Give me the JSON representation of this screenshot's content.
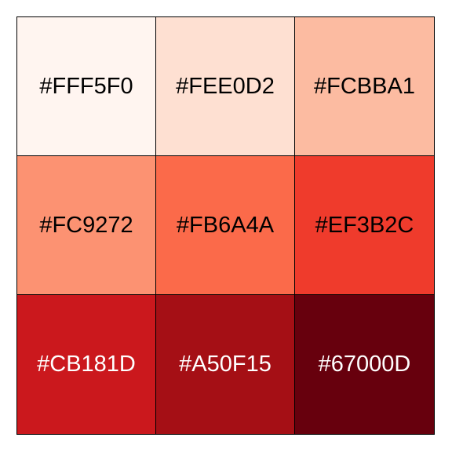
{
  "swatches": [
    {
      "label": "#FFF5F0",
      "color": "#FFF5F0",
      "text_color": "#000000"
    },
    {
      "label": "#FEE0D2",
      "color": "#FEE0D2",
      "text_color": "#000000"
    },
    {
      "label": "#FCBBA1",
      "color": "#FCBBA1",
      "text_color": "#000000"
    },
    {
      "label": "#FC9272",
      "color": "#FC9272",
      "text_color": "#000000"
    },
    {
      "label": "#FB6A4A",
      "color": "#FB6A4A",
      "text_color": "#000000"
    },
    {
      "label": "#EF3B2C",
      "color": "#EF3B2C",
      "text_color": "#000000"
    },
    {
      "label": "#CB181D",
      "color": "#CB181D",
      "text_color": "#FFFFFF"
    },
    {
      "label": "#A50F15",
      "color": "#A50F15",
      "text_color": "#FFFFFF"
    },
    {
      "label": "#67000D",
      "color": "#67000D",
      "text_color": "#FFFFFF"
    }
  ]
}
